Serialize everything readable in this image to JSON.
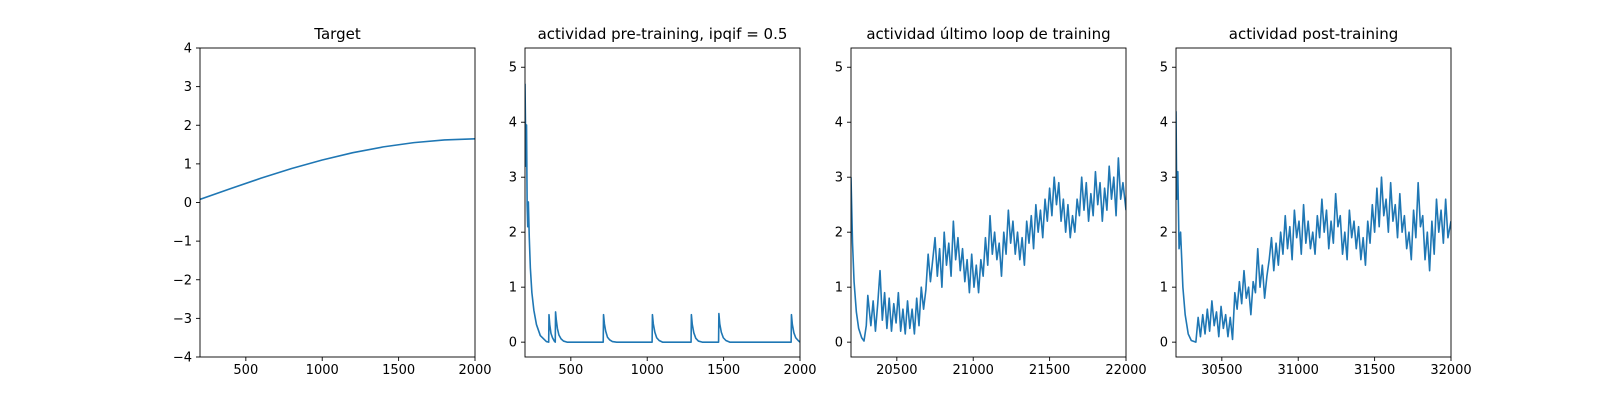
{
  "chart_data": [
    {
      "type": "line",
      "title": "Target",
      "xlabel": "",
      "ylabel": "",
      "xlim": [
        200,
        2000
      ],
      "ylim": [
        -4,
        4
      ],
      "xticks": [
        500,
        1000,
        1500,
        2000
      ],
      "yticks": [
        -4,
        -3,
        -2,
        -1,
        0,
        1,
        2,
        3,
        4
      ],
      "series": [
        {
          "color": "#1f77b4",
          "x": [
            200,
            400,
            600,
            800,
            1000,
            1200,
            1400,
            1600,
            1800,
            2000
          ],
          "y": [
            0.08,
            0.36,
            0.63,
            0.88,
            1.1,
            1.29,
            1.44,
            1.55,
            1.62,
            1.65
          ]
        }
      ]
    },
    {
      "type": "line",
      "title": "actividad pre-training, ipqif = 0.5",
      "xlabel": "",
      "ylabel": "",
      "xlim": [
        200,
        2000
      ],
      "ylim": [
        -0.27,
        5.35
      ],
      "xticks": [
        500,
        1000,
        1500,
        2000
      ],
      "yticks": [
        0,
        1,
        2,
        3,
        4,
        5
      ],
      "series": [
        {
          "color": "#1f77b4",
          "x": [
            200,
            203,
            206,
            210,
            214,
            218,
            222,
            228,
            235,
            245,
            258,
            275,
            300,
            340,
            355,
            357,
            362,
            370,
            380,
            392,
            398,
            400,
            405,
            412,
            422,
            436,
            452,
            475,
            520,
            600,
            700,
            712,
            714,
            720,
            728,
            740,
            755,
            772,
            800,
            900,
            1020,
            1032,
            1034,
            1040,
            1050,
            1062,
            1078,
            1100,
            1200,
            1280,
            1287,
            1289,
            1295,
            1305,
            1318,
            1335,
            1360,
            1430,
            1460,
            1467,
            1469,
            1475,
            1485,
            1498,
            1515,
            1540,
            1650,
            1800,
            1935,
            1942,
            1944,
            1950,
            1960,
            1972,
            1988,
            2000
          ],
          "y": [
            4.7,
            4.0,
            3.2,
            3.95,
            2.5,
            2.1,
            2.55,
            1.9,
            1.35,
            0.9,
            0.58,
            0.32,
            0.12,
            0.01,
            0.0,
            0.5,
            0.32,
            0.16,
            0.08,
            0.02,
            0.0,
            0.55,
            0.4,
            0.25,
            0.13,
            0.06,
            0.02,
            0.0,
            0.0,
            0.0,
            0.0,
            0.0,
            0.5,
            0.33,
            0.2,
            0.09,
            0.04,
            0.01,
            0.0,
            0.0,
            0.0,
            0.0,
            0.5,
            0.33,
            0.18,
            0.08,
            0.03,
            0.0,
            0.0,
            0.0,
            0.0,
            0.5,
            0.32,
            0.17,
            0.07,
            0.02,
            0.0,
            0.0,
            0.0,
            0.0,
            0.52,
            0.33,
            0.18,
            0.08,
            0.03,
            0.0,
            0.0,
            0.0,
            0.0,
            0.0,
            0.5,
            0.32,
            0.17,
            0.08,
            0.03,
            0.0
          ]
        }
      ]
    },
    {
      "type": "line",
      "title": "actividad último loop de training",
      "xlabel": "",
      "ylabel": "",
      "xlim": [
        20200,
        22000
      ],
      "ylim": [
        -0.27,
        5.35
      ],
      "xticks": [
        20500,
        21000,
        21500,
        22000
      ],
      "yticks": [
        0,
        1,
        2,
        3,
        4,
        5
      ],
      "series": [
        {
          "color": "#1f77b4",
          "x": [
            20200,
            20210,
            20220,
            20235,
            20250,
            20270,
            20285,
            20300,
            20310,
            20330,
            20345,
            20360,
            20375,
            20390,
            20405,
            20420,
            20435,
            20450,
            20465,
            20480,
            20495,
            20510,
            20525,
            20540,
            20555,
            20570,
            20585,
            20600,
            20615,
            20630,
            20645,
            20660,
            20675,
            20690,
            20705,
            20720,
            20735,
            20750,
            20765,
            20780,
            20795,
            20810,
            20825,
            20840,
            20855,
            20870,
            20885,
            20900,
            20915,
            20930,
            20945,
            20960,
            20975,
            20990,
            21005,
            21020,
            21035,
            21050,
            21065,
            21080,
            21095,
            21110,
            21125,
            21140,
            21155,
            21170,
            21185,
            21200,
            21215,
            21230,
            21245,
            21260,
            21275,
            21290,
            21305,
            21320,
            21335,
            21350,
            21365,
            21380,
            21395,
            21410,
            21425,
            21440,
            21455,
            21470,
            21485,
            21500,
            21515,
            21530,
            21545,
            21560,
            21575,
            21590,
            21605,
            21620,
            21635,
            21650,
            21665,
            21680,
            21695,
            21710,
            21725,
            21740,
            21755,
            21770,
            21785,
            21800,
            21815,
            21830,
            21845,
            21860,
            21875,
            21890,
            21905,
            21920,
            21935,
            21950,
            21965,
            21980,
            22000
          ],
          "y": [
            3.0,
            1.8,
            1.1,
            0.55,
            0.25,
            0.08,
            0.02,
            0.3,
            0.85,
            0.3,
            0.75,
            0.2,
            0.7,
            1.3,
            0.4,
            0.9,
            0.25,
            0.8,
            0.2,
            0.7,
            0.35,
            0.9,
            0.2,
            0.6,
            0.15,
            0.75,
            0.25,
            0.6,
            0.15,
            0.8,
            0.3,
            1.0,
            0.6,
            0.95,
            1.6,
            1.1,
            1.5,
            1.9,
            1.2,
            1.7,
            1.0,
            2.0,
            1.4,
            1.8,
            1.2,
            2.2,
            1.5,
            1.9,
            1.3,
            1.7,
            1.1,
            1.5,
            0.9,
            1.6,
            1.0,
            1.4,
            0.9,
            1.5,
            1.2,
            1.9,
            1.4,
            2.3,
            1.6,
            2.0,
            1.5,
            1.8,
            1.2,
            2.0,
            1.6,
            2.4,
            1.8,
            2.2,
            1.6,
            2.0,
            1.5,
            1.9,
            1.4,
            2.2,
            1.8,
            2.3,
            1.7,
            2.5,
            2.0,
            2.4,
            1.9,
            2.6,
            2.2,
            2.8,
            2.3,
            3.0,
            2.5,
            2.9,
            2.2,
            2.6,
            2.0,
            2.5,
            1.9,
            2.3,
            2.0,
            2.6,
            2.3,
            3.0,
            2.4,
            2.9,
            2.2,
            2.7,
            2.3,
            3.1,
            2.5,
            2.9,
            2.2,
            2.8,
            2.4,
            3.2,
            2.6,
            3.0,
            2.3,
            3.35,
            2.6,
            2.9,
            2.4
          ]
        }
      ]
    },
    {
      "type": "line",
      "title": "actividad post-training",
      "xlabel": "",
      "ylabel": "",
      "xlim": [
        30200,
        32000
      ],
      "ylim": [
        -0.27,
        5.35
      ],
      "xticks": [
        30500,
        31000,
        31500,
        32000
      ],
      "yticks": [
        0,
        1,
        2,
        3,
        4,
        5
      ],
      "series": [
        {
          "color": "#1f77b4",
          "x": [
            30200,
            30205,
            30212,
            30220,
            30230,
            30245,
            30260,
            30280,
            30300,
            30330,
            30345,
            30360,
            30375,
            30390,
            30405,
            30420,
            30435,
            30450,
            30465,
            30480,
            30495,
            30510,
            30525,
            30540,
            30555,
            30570,
            30585,
            30600,
            30615,
            30630,
            30645,
            30660,
            30675,
            30690,
            30705,
            30720,
            30735,
            30750,
            30765,
            30780,
            30795,
            30810,
            30825,
            30840,
            30855,
            30870,
            30885,
            30900,
            30915,
            30930,
            30945,
            30960,
            30975,
            30990,
            31005,
            31020,
            31035,
            31050,
            31065,
            31080,
            31095,
            31110,
            31125,
            31140,
            31155,
            31170,
            31185,
            31200,
            31215,
            31230,
            31245,
            31260,
            31275,
            31290,
            31305,
            31320,
            31335,
            31350,
            31365,
            31380,
            31395,
            31410,
            31425,
            31440,
            31455,
            31470,
            31485,
            31500,
            31515,
            31530,
            31545,
            31560,
            31575,
            31590,
            31605,
            31620,
            31635,
            31650,
            31665,
            31680,
            31695,
            31710,
            31725,
            31740,
            31755,
            31770,
            31785,
            31800,
            31815,
            31830,
            31845,
            31860,
            31875,
            31890,
            31905,
            31920,
            31935,
            31950,
            31965,
            31980,
            32000
          ],
          "y": [
            4.2,
            2.6,
            3.1,
            1.7,
            2.0,
            1.0,
            0.5,
            0.15,
            0.03,
            0.0,
            0.45,
            0.1,
            0.5,
            0.15,
            0.6,
            0.2,
            0.75,
            0.3,
            0.55,
            0.1,
            0.65,
            0.25,
            0.5,
            0.1,
            0.45,
            0.05,
            0.9,
            0.6,
            1.1,
            0.7,
            1.3,
            0.8,
            1.0,
            0.5,
            1.1,
            0.9,
            1.7,
            1.0,
            1.4,
            0.8,
            1.2,
            1.5,
            1.9,
            1.3,
            1.8,
            1.4,
            2.0,
            1.6,
            2.3,
            1.7,
            2.1,
            1.5,
            2.4,
            1.9,
            2.2,
            1.6,
            2.5,
            1.8,
            2.2,
            1.7,
            2.0,
            1.6,
            2.3,
            1.9,
            2.6,
            2.0,
            2.4,
            1.7,
            2.2,
            1.8,
            2.7,
            2.1,
            2.3,
            1.6,
            2.0,
            1.5,
            2.4,
            1.9,
            2.2,
            1.7,
            2.1,
            1.5,
            1.9,
            1.4,
            2.2,
            1.8,
            2.5,
            2.0,
            2.8,
            2.1,
            3.0,
            2.3,
            2.6,
            2.0,
            2.9,
            2.2,
            2.5,
            1.9,
            2.7,
            2.0,
            2.3,
            1.7,
            2.0,
            1.5,
            2.4,
            1.9,
            2.9,
            2.1,
            2.3,
            1.5,
            2.0,
            1.3,
            2.2,
            1.6,
            2.6,
            2.0,
            2.4,
            1.8,
            2.6,
            1.9,
            2.2
          ]
        }
      ]
    }
  ]
}
